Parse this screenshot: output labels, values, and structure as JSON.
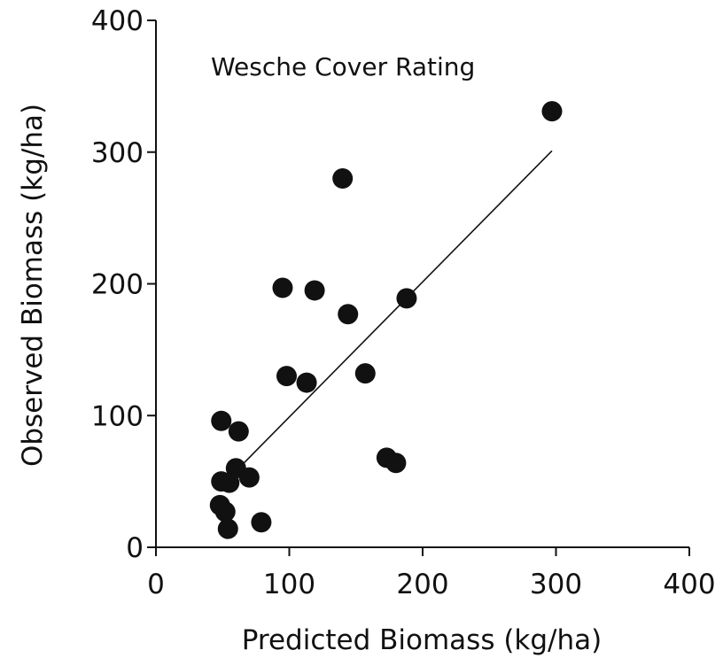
{
  "chart_data": {
    "type": "scatter",
    "title": "",
    "annotation": "Wesche Cover Rating",
    "xlabel": "Predicted Biomass (kg/ha)",
    "ylabel": "Observed Biomass (kg/ha)",
    "xlim": [
      0,
      400
    ],
    "ylim": [
      0,
      400
    ],
    "xticks": [
      "0",
      "100",
      "200",
      "300",
      "400"
    ],
    "yticks": [
      "0",
      "100",
      "200",
      "300",
      "400"
    ],
    "grid": false,
    "legend": "none",
    "point_color": "#111111",
    "points": [
      {
        "x": 297,
        "y": 331
      },
      {
        "x": 140,
        "y": 280
      },
      {
        "x": 95,
        "y": 197
      },
      {
        "x": 119,
        "y": 195
      },
      {
        "x": 188,
        "y": 189
      },
      {
        "x": 144,
        "y": 177
      },
      {
        "x": 157,
        "y": 132
      },
      {
        "x": 98,
        "y": 130
      },
      {
        "x": 113,
        "y": 125
      },
      {
        "x": 49,
        "y": 96
      },
      {
        "x": 62,
        "y": 88
      },
      {
        "x": 173,
        "y": 68
      },
      {
        "x": 180,
        "y": 64
      },
      {
        "x": 60,
        "y": 60
      },
      {
        "x": 70,
        "y": 53
      },
      {
        "x": 49,
        "y": 50
      },
      {
        "x": 55,
        "y": 49
      },
      {
        "x": 48,
        "y": 32
      },
      {
        "x": 52,
        "y": 27
      },
      {
        "x": 79,
        "y": 19
      },
      {
        "x": 54,
        "y": 14
      }
    ],
    "fit_line": {
      "x": [
        65,
        297
      ],
      "y": [
        63,
        301
      ]
    }
  }
}
